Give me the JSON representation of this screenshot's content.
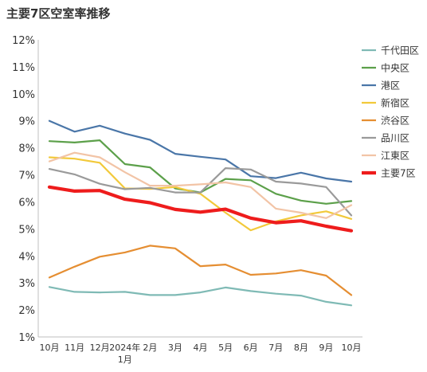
{
  "chart_data": {
    "type": "line",
    "title": "主要7区空室率推移",
    "categories": [
      "10月",
      "11月",
      "12月",
      "2024年1月",
      "2月",
      "3月",
      "4月",
      "5月",
      "6月",
      "7月",
      "8月",
      "9月",
      "10月"
    ],
    "x_tick_lines": [
      [
        "10月"
      ],
      [
        "11月"
      ],
      [
        "12月"
      ],
      [
        "2024年",
        "1月"
      ],
      [
        "2月"
      ],
      [
        "3月"
      ],
      [
        "4月"
      ],
      [
        "5月"
      ],
      [
        "6月"
      ],
      [
        "7月"
      ],
      [
        "8月"
      ],
      [
        "9月"
      ],
      [
        "10月"
      ]
    ],
    "y_ticks": [
      "1%",
      "2%",
      "3%",
      "4%",
      "5%",
      "6%",
      "7%",
      "8%",
      "9%",
      "10%",
      "11%",
      "12%"
    ],
    "ylim": [
      1,
      12
    ],
    "ylabel": "",
    "xlabel": "",
    "grid": false,
    "legend_position": "right",
    "series": [
      {
        "name": "千代田区",
        "color": "#7fbab5",
        "width": 2.2,
        "values": [
          2.85,
          2.67,
          2.65,
          2.67,
          2.55,
          2.55,
          2.65,
          2.83,
          2.7,
          2.6,
          2.53,
          2.3,
          2.17
        ]
      },
      {
        "name": "中央区",
        "color": "#5ca04a",
        "width": 2.2,
        "values": [
          8.25,
          8.2,
          8.28,
          7.4,
          7.28,
          6.5,
          6.35,
          6.85,
          6.8,
          6.3,
          6.05,
          5.93,
          6.03
        ]
      },
      {
        "name": "港区",
        "color": "#4a76a8",
        "width": 2.2,
        "values": [
          9.0,
          8.6,
          8.82,
          8.53,
          8.3,
          7.78,
          7.67,
          7.57,
          6.95,
          6.88,
          7.08,
          6.87,
          6.75
        ]
      },
      {
        "name": "新宿区",
        "color": "#f2c93a",
        "width": 2.2,
        "values": [
          7.65,
          7.6,
          7.45,
          6.5,
          6.48,
          6.55,
          6.3,
          5.6,
          4.95,
          5.28,
          5.5,
          5.65,
          5.37
        ]
      },
      {
        "name": "渋谷区",
        "color": "#e58e32",
        "width": 2.2,
        "values": [
          3.2,
          3.6,
          3.97,
          4.13,
          4.38,
          4.28,
          3.62,
          3.68,
          3.3,
          3.35,
          3.47,
          3.27,
          2.55
        ]
      },
      {
        "name": "品川区",
        "color": "#9a9a9a",
        "width": 2.2,
        "values": [
          7.22,
          7.02,
          6.67,
          6.47,
          6.52,
          6.35,
          6.35,
          7.25,
          7.2,
          6.75,
          6.68,
          6.55,
          5.5
        ]
      },
      {
        "name": "江東区",
        "color": "#f2c4a6",
        "width": 2.2,
        "values": [
          7.5,
          7.82,
          7.65,
          7.1,
          6.6,
          6.6,
          6.65,
          6.72,
          6.55,
          5.75,
          5.6,
          5.4,
          5.88
        ]
      },
      {
        "name": "主要7区",
        "color": "#ee1c1c",
        "width": 4.2,
        "values": [
          6.55,
          6.4,
          6.42,
          6.1,
          5.97,
          5.72,
          5.62,
          5.73,
          5.4,
          5.23,
          5.3,
          5.1,
          4.93
        ]
      }
    ]
  }
}
